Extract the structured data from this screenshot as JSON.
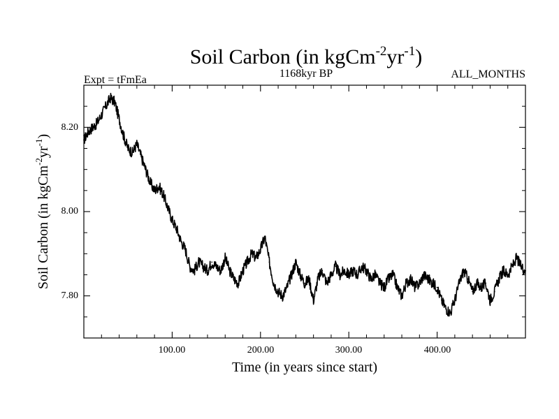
{
  "page": {
    "background": "#ffffff",
    "foreground": "#000000"
  },
  "header": {
    "title_main": "Soil Carbon (in kgCm",
    "title_sup1": "-2",
    "title_mid": "yr",
    "title_sup2": "-1",
    "title_end": ")",
    "experiment_label": "Expt = tFmEa",
    "period_label": "1168kyr BP",
    "months_label": "ALL_MONTHS"
  },
  "axes": {
    "x_label": "Time (in years since start)",
    "y_label_main": "Soil Carbon (in kgCm",
    "y_label_sup1": "-2",
    "y_label_mid": "yr",
    "y_label_sup2": "-1",
    "y_label_end": ")",
    "x_ticks": [
      "100.00",
      "200.00",
      "300.00",
      "400.00"
    ],
    "y_ticks": [
      "7.80",
      "8.00",
      "8.20"
    ]
  },
  "chart_data": {
    "type": "line",
    "title": "Soil Carbon (in kgCm-2yr-1)",
    "xlabel": "Time (in years since start)",
    "ylabel": "Soil Carbon (in kgCm-2yr-1)",
    "xlim": [
      0,
      500
    ],
    "ylim": [
      7.7,
      8.3
    ],
    "x_tick_values": [
      100,
      200,
      300,
      400
    ],
    "x_tick_labels": [
      "100.00",
      "200.00",
      "300.00",
      "400.00"
    ],
    "y_tick_values": [
      7.8,
      8.0,
      8.2
    ],
    "y_tick_labels": [
      "7.80",
      "8.00",
      "8.20"
    ],
    "grid": false,
    "series": [
      {
        "name": "Soil Carbon",
        "color": "#000000",
        "x": [
          0,
          5,
          10,
          15,
          20,
          25,
          30,
          35,
          40,
          45,
          50,
          55,
          60,
          65,
          70,
          75,
          80,
          85,
          90,
          95,
          100,
          105,
          110,
          115,
          120,
          125,
          130,
          135,
          140,
          145,
          150,
          155,
          160,
          165,
          170,
          175,
          180,
          185,
          190,
          195,
          200,
          205,
          210,
          215,
          220,
          225,
          230,
          235,
          240,
          245,
          250,
          255,
          260,
          265,
          270,
          275,
          280,
          285,
          290,
          295,
          300,
          305,
          310,
          315,
          320,
          325,
          330,
          335,
          340,
          345,
          350,
          355,
          360,
          365,
          370,
          375,
          380,
          385,
          390,
          395,
          400,
          405,
          410,
          415,
          420,
          425,
          430,
          435,
          440,
          445,
          450,
          455,
          460,
          465,
          470,
          475,
          480,
          485,
          490,
          495,
          500
        ],
        "values": [
          8.17,
          8.19,
          8.2,
          8.21,
          8.23,
          8.25,
          8.27,
          8.26,
          8.22,
          8.18,
          8.15,
          8.14,
          8.16,
          8.13,
          8.1,
          8.07,
          8.05,
          8.06,
          8.04,
          8.01,
          7.98,
          7.96,
          7.93,
          7.91,
          7.87,
          7.86,
          7.88,
          7.87,
          7.86,
          7.88,
          7.87,
          7.86,
          7.89,
          7.86,
          7.84,
          7.83,
          7.86,
          7.88,
          7.9,
          7.89,
          7.91,
          7.94,
          7.88,
          7.83,
          7.81,
          7.8,
          7.82,
          7.85,
          7.88,
          7.85,
          7.83,
          7.84,
          7.79,
          7.84,
          7.86,
          7.83,
          7.85,
          7.87,
          7.85,
          7.86,
          7.85,
          7.86,
          7.85,
          7.87,
          7.86,
          7.84,
          7.85,
          7.83,
          7.82,
          7.84,
          7.85,
          7.82,
          7.8,
          7.83,
          7.84,
          7.82,
          7.83,
          7.85,
          7.84,
          7.83,
          7.82,
          7.79,
          7.77,
          7.76,
          7.79,
          7.83,
          7.86,
          7.84,
          7.81,
          7.83,
          7.82,
          7.83,
          7.79,
          7.81,
          7.84,
          7.86,
          7.85,
          7.87,
          7.89,
          7.87,
          7.86
        ]
      }
    ]
  }
}
